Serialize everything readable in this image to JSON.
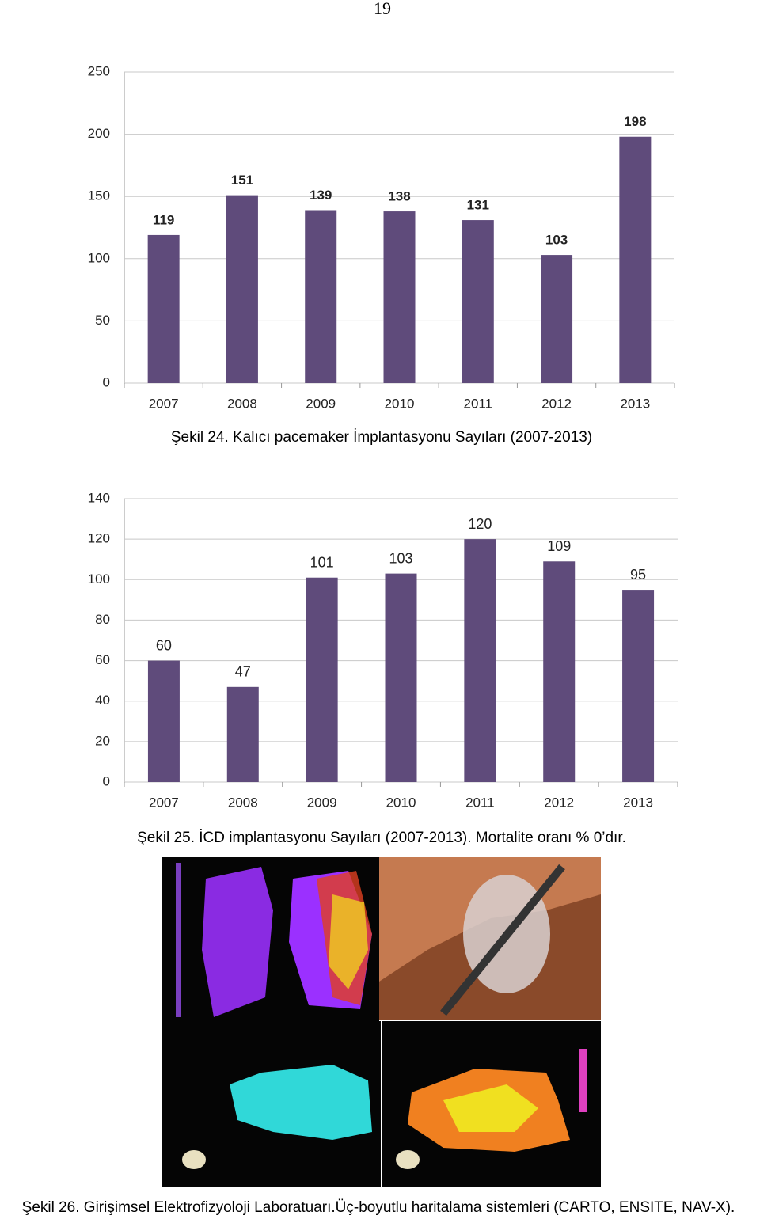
{
  "page_number": "19",
  "chart_data": [
    {
      "type": "bar",
      "categories": [
        "2007",
        "2008",
        "2009",
        "2010",
        "2011",
        "2012",
        "2013"
      ],
      "values": [
        119,
        151,
        139,
        138,
        131,
        103,
        198
      ],
      "color": "#5f4b7b",
      "ylim": [
        0,
        250
      ],
      "yticks": [
        0,
        50,
        100,
        150,
        200,
        250
      ],
      "grid": true
    },
    {
      "type": "bar",
      "categories": [
        "2007",
        "2008",
        "2009",
        "2010",
        "2011",
        "2012",
        "2013"
      ],
      "values": [
        60,
        47,
        101,
        103,
        120,
        109,
        95
      ],
      "color": "#5f4b7b",
      "ylim": [
        0,
        140
      ],
      "yticks": [
        0,
        20,
        40,
        60,
        80,
        100,
        120,
        140
      ],
      "grid": true
    }
  ],
  "captions": [
    "Şekil 24. Kalıcı pacemaker İmplantasyonu Sayıları (2007-2013)",
    "Şekil 25. İCD implantasyonu Sayıları (2007-2013). Mortalite oranı % 0’dır.",
    "Şekil 26. Girişimsel Elektrofizyoloji Laboratuarı.Üç-boyutlu haritalama sistemleri (CARTO, ENSITE, NAV-X)."
  ]
}
